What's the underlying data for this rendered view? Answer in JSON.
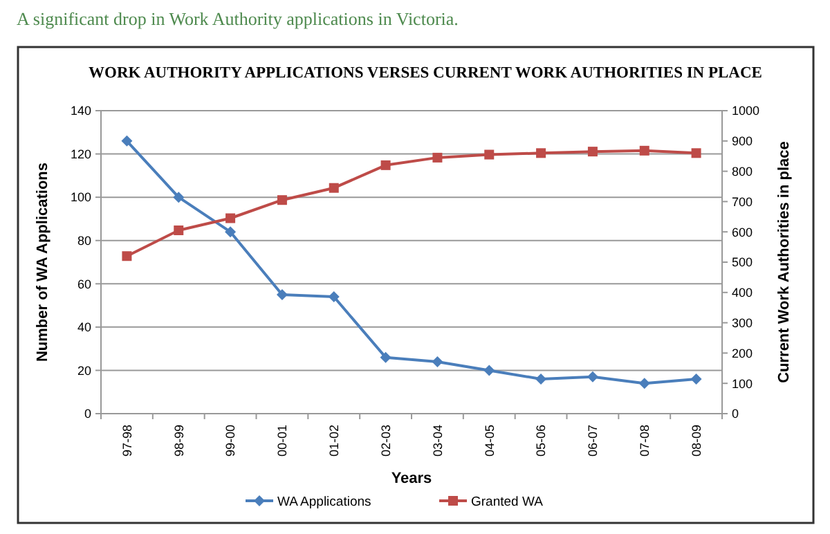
{
  "chart_data": {
    "type": "line",
    "title": "WORK AUTHORITY APPLICATIONS VERSES CURRENT WORK AUTHORITIES IN PLACE",
    "subtitle": "A significant drop in Work Authority applications in Victoria.",
    "xlabel": "Years",
    "ylabel": "Number of WA Applications",
    "y2label": "Current Work Authorities in place",
    "categories": [
      "97-98",
      "98-99",
      "99-00",
      "00-01",
      "01-02",
      "02-03",
      "03-04",
      "04-05",
      "05-06",
      "06-07",
      "07-08",
      "08-09"
    ],
    "series": [
      {
        "name": "WA Applications",
        "color": "#4a7ebb",
        "marker": "diamond",
        "values": [
          126,
          100,
          84,
          55,
          54,
          26,
          24,
          20,
          16,
          17,
          14,
          16
        ]
      },
      {
        "name": "Granted WA",
        "color": "#be4b48",
        "marker": "square",
        "axis": "y2",
        "values": [
          520,
          605,
          645,
          705,
          745,
          820,
          845,
          855,
          860,
          865,
          868,
          860
        ]
      }
    ],
    "ylim": [
      0,
      140
    ],
    "yticks": [
      0,
      20,
      40,
      60,
      80,
      100,
      120,
      140
    ],
    "y2lim": [
      0,
      1000
    ],
    "y2ticks": [
      0,
      100,
      200,
      300,
      400,
      500,
      600,
      700,
      800,
      900,
      1000
    ],
    "grid": "y",
    "legend": "bottom"
  }
}
